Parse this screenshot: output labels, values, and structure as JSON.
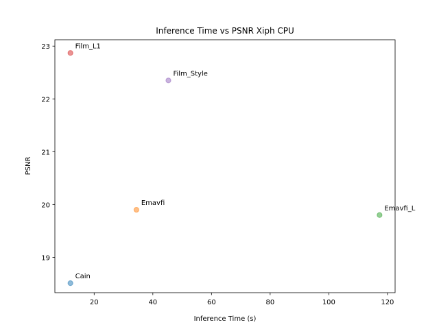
{
  "chart_data": {
    "type": "scatter",
    "title": "Inference Time vs PSNR Xiph CPU",
    "xlabel": "Inference Time (s)",
    "ylabel": "PSNR",
    "xlim": [
      6.6,
      122.6
    ],
    "ylim": [
      18.33,
      23.12
    ],
    "xticks": [
      20,
      40,
      60,
      80,
      100,
      120
    ],
    "yticks": [
      19,
      20,
      21,
      22,
      23
    ],
    "grid": false,
    "points": [
      {
        "label": "Cain",
        "x": 11.9,
        "y": 18.51,
        "color": "#1f77b4"
      },
      {
        "label": "Emavfi",
        "x": 34.4,
        "y": 19.9,
        "color": "#ff7f0e"
      },
      {
        "label": "Emavfi_L",
        "x": 117.3,
        "y": 19.8,
        "color": "#2ca02c"
      },
      {
        "label": "Film_L1",
        "x": 11.9,
        "y": 22.87,
        "color": "#d62728"
      },
      {
        "label": "Film_Style",
        "x": 45.3,
        "y": 22.35,
        "color": "#9467bd"
      }
    ]
  }
}
